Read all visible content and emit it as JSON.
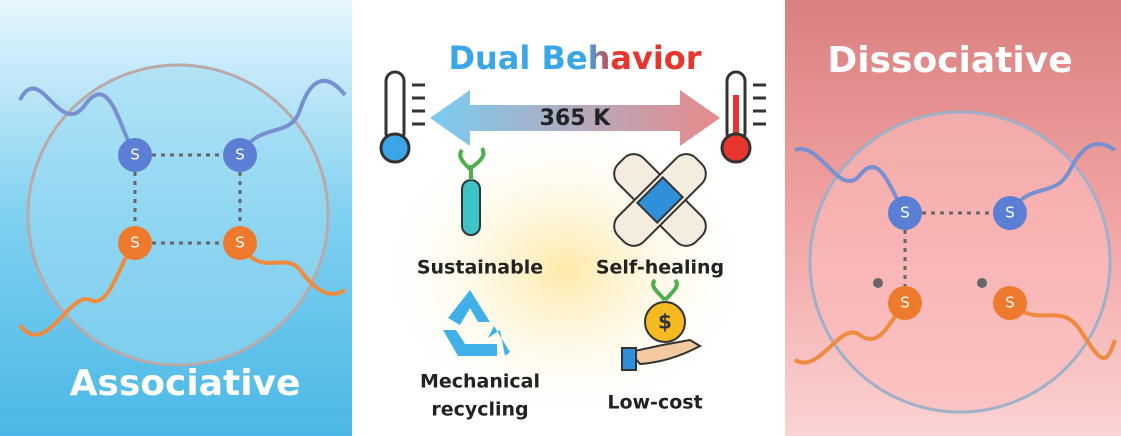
{
  "title": "Dual Behavior",
  "temperature": "365 K",
  "left_panel": {
    "label": "Associative",
    "atoms": [
      "S",
      "S",
      "S",
      "S"
    ]
  },
  "right_panel": {
    "label": "Dissociative",
    "atoms": [
      "S",
      "S",
      "S",
      "S"
    ]
  },
  "features": [
    {
      "lines": [
        "Sustainable"
      ]
    },
    {
      "lines": [
        "Self-healing"
      ]
    },
    {
      "lines": [
        "Mechanical",
        "recycling"
      ]
    },
    {
      "lines": [
        "Low-cost"
      ]
    }
  ]
}
